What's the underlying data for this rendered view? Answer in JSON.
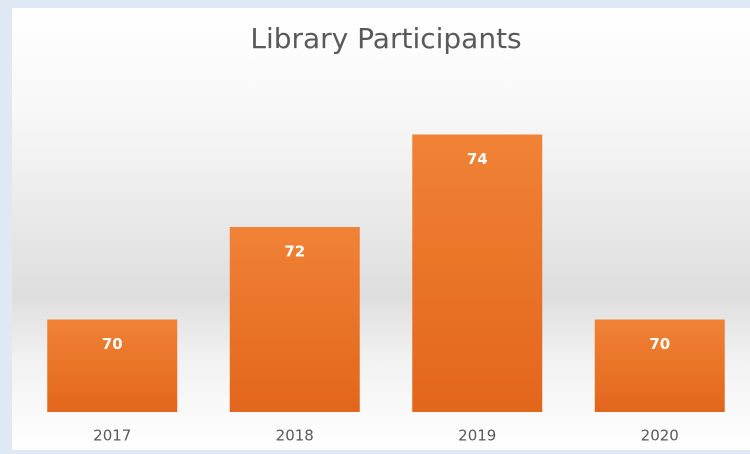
{
  "chart_data": {
    "type": "bar",
    "title": "Library Participants",
    "categories": [
      "2017",
      "2018",
      "2019",
      "2020"
    ],
    "values": [
      70,
      72,
      74,
      70
    ],
    "color": "#ed7d31",
    "ylim": [
      68,
      76
    ]
  }
}
